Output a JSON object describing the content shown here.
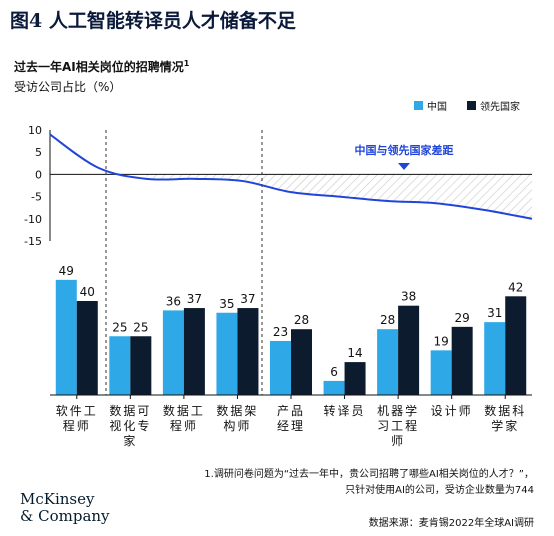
{
  "figure_label": "图4",
  "title_text": "人工智能转译员人才储备不足",
  "subtitle": "过去一年AI相关岗位的招聘情况",
  "subtitle_note": "1",
  "unit_label": "受访公司占比（%）",
  "colors": {
    "china": "#2ea8e6",
    "leading": "#0d1b2e",
    "line": "#2145d8",
    "title": "#0b1a3a"
  },
  "legend": {
    "china": "中国",
    "leading": "领先国家"
  },
  "gap_annotation": "中国与领先国家差距",
  "footnote_line1": "1.调研问卷问题为“过去一年中，贵公司招聘了哪些AI相关岗位的人才？”，",
  "footnote_line2": "只针对使用AI的公司，受访企业数量为744",
  "source": "数据来源：麦肯锡2022年全球AI调研",
  "logo_line1": "McKinsey",
  "logo_line2": "& Company",
  "chart_data": {
    "type": "bar",
    "categories": [
      "软件工程师",
      "数据可视化专家",
      "数据工程师",
      "数据架构师",
      "产品经理",
      "转译员",
      "机器学习工程师",
      "设计师",
      "数据科学家"
    ],
    "category_lines": [
      [
        "软件工",
        "程师"
      ],
      [
        "数据可",
        "视化专",
        "家"
      ],
      [
        "数据工",
        "程师"
      ],
      [
        "数据架",
        "构师"
      ],
      [
        "产品",
        "经理"
      ],
      [
        "转译员"
      ],
      [
        "机器学",
        "习工程",
        "师"
      ],
      [
        "设计师"
      ],
      [
        "数据科",
        "学家"
      ]
    ],
    "series": [
      {
        "name": "中国",
        "values": [
          49,
          25,
          36,
          35,
          23,
          6,
          28,
          19,
          31
        ]
      },
      {
        "name": "领先国家",
        "values": [
          40,
          25,
          37,
          37,
          28,
          14,
          38,
          29,
          42
        ]
      }
    ],
    "gap_line": {
      "ylim": [
        -15,
        10
      ],
      "yticks": [
        10,
        5,
        0,
        -5,
        -10,
        -15
      ],
      "values": [
        9,
        1.5,
        -1,
        -1,
        -1.5,
        -4,
        -5,
        -6,
        -6.5,
        -8,
        -10
      ]
    }
  }
}
